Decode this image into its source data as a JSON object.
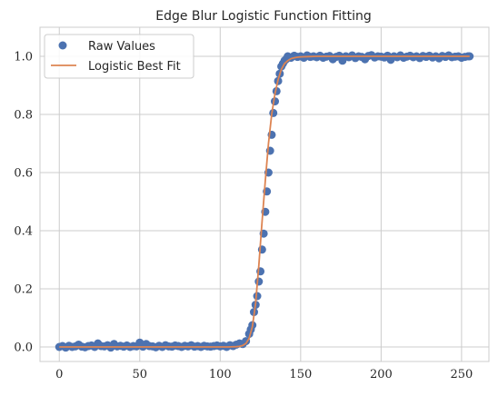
{
  "chart_data": {
    "type": "scatter",
    "title": "Edge Blur Logistic Function Fitting",
    "xlabel": "",
    "ylabel": "",
    "xlim": [
      -12,
      267
    ],
    "ylim": [
      -0.05,
      1.1
    ],
    "xticks": [
      0,
      50,
      100,
      150,
      200,
      250
    ],
    "yticks": [
      0.0,
      0.2,
      0.4,
      0.6,
      0.8,
      1.0
    ],
    "xtick_labels": [
      "0",
      "50",
      "100",
      "150",
      "200",
      "250"
    ],
    "ytick_labels": [
      "0.0",
      "0.2",
      "0.4",
      "0.6",
      "0.8",
      "1.0"
    ],
    "grid": true,
    "legend_position": "top-left",
    "legend": [
      "Raw Values",
      "Logistic Best Fit"
    ],
    "series": [
      {
        "name": "Raw Values",
        "kind": "scatter",
        "color": "#4c72b0",
        "x": [
          0,
          2,
          4,
          6,
          8,
          10,
          12,
          14,
          16,
          18,
          20,
          22,
          24,
          26,
          28,
          30,
          32,
          34,
          36,
          38,
          40,
          42,
          44,
          46,
          48,
          50,
          52,
          54,
          56,
          58,
          60,
          62,
          64,
          66,
          68,
          70,
          72,
          74,
          76,
          78,
          80,
          82,
          84,
          86,
          88,
          90,
          92,
          94,
          96,
          98,
          100,
          102,
          104,
          106,
          108,
          110,
          112,
          114,
          116,
          118,
          119,
          120,
          121,
          122,
          123,
          124,
          125,
          126,
          127,
          128,
          129,
          130,
          131,
          132,
          133,
          134,
          135,
          136,
          137,
          138,
          139,
          140,
          141,
          142,
          144,
          146,
          148,
          150,
          152,
          154,
          156,
          158,
          160,
          162,
          164,
          166,
          168,
          170,
          172,
          174,
          176,
          178,
          180,
          182,
          184,
          186,
          188,
          190,
          192,
          194,
          196,
          198,
          200,
          202,
          204,
          206,
          208,
          210,
          212,
          214,
          216,
          218,
          220,
          222,
          224,
          226,
          228,
          230,
          232,
          234,
          236,
          238,
          240,
          242,
          244,
          246,
          248,
          250,
          252,
          254,
          255
        ],
        "y": [
          0.0,
          0.003,
          -0.002,
          0.004,
          0.0,
          0.002,
          0.008,
          0.001,
          -0.001,
          0.003,
          0.005,
          0.0,
          0.012,
          0.003,
          0.002,
          0.006,
          -0.002,
          0.01,
          0.002,
          0.004,
          0.001,
          0.005,
          0.0,
          0.003,
          0.002,
          0.015,
          0.001,
          0.01,
          0.003,
          0.002,
          -0.001,
          0.004,
          0.0,
          0.006,
          0.002,
          0.001,
          0.005,
          0.003,
          0.0,
          0.004,
          0.002,
          0.006,
          0.001,
          0.003,
          0.0,
          0.004,
          0.002,
          0.001,
          0.003,
          0.005,
          0.002,
          0.004,
          0.0,
          0.006,
          0.003,
          0.008,
          0.012,
          0.01,
          0.02,
          0.045,
          0.06,
          0.075,
          0.12,
          0.145,
          0.175,
          0.225,
          0.26,
          0.335,
          0.39,
          0.465,
          0.535,
          0.6,
          0.675,
          0.73,
          0.805,
          0.845,
          0.88,
          0.915,
          0.94,
          0.965,
          0.975,
          0.985,
          0.99,
          1.0,
          0.995,
          1.002,
          0.998,
          1.0,
          0.995,
          1.003,
          0.998,
          1.0,
          0.997,
          1.002,
          0.995,
          0.999,
          1.001,
          0.99,
          0.998,
          1.002,
          0.985,
          1.0,
          0.997,
          1.003,
          0.994,
          1.0,
          0.998,
          0.99,
          1.001,
          1.004,
          0.996,
          1.0,
          0.999,
          0.996,
          1.002,
          0.988,
          1.0,
          0.997,
          1.003,
          0.995,
          0.999,
          1.002,
          0.997,
          1.0,
          0.994,
          1.001,
          0.998,
          1.002,
          0.996,
          1.0,
          0.993,
          1.001,
          0.998,
          1.003,
          0.997,
          0.999,
          1.0,
          0.995,
          0.998,
          1.0,
          1.0
        ]
      },
      {
        "name": "Logistic Best Fit",
        "kind": "line",
        "color": "#dd8452",
        "x": [
          0,
          20,
          40,
          60,
          80,
          100,
          105,
          110,
          112,
          114,
          116,
          118,
          120,
          122,
          124,
          126,
          128,
          130,
          132,
          134,
          136,
          138,
          140,
          142,
          144,
          146,
          148,
          150,
          155,
          160,
          170,
          180,
          200,
          220,
          240,
          255
        ],
        "y": [
          0.0,
          0.0,
          0.0,
          0.0,
          0.0,
          0.0,
          0.0,
          0.001,
          0.002,
          0.005,
          0.012,
          0.03,
          0.07,
          0.15,
          0.28,
          0.43,
          0.57,
          0.7,
          0.8,
          0.87,
          0.92,
          0.955,
          0.975,
          0.985,
          0.992,
          0.995,
          0.997,
          0.998,
          0.999,
          1.0,
          1.0,
          1.0,
          1.0,
          1.0,
          1.0,
          1.0
        ]
      }
    ]
  }
}
